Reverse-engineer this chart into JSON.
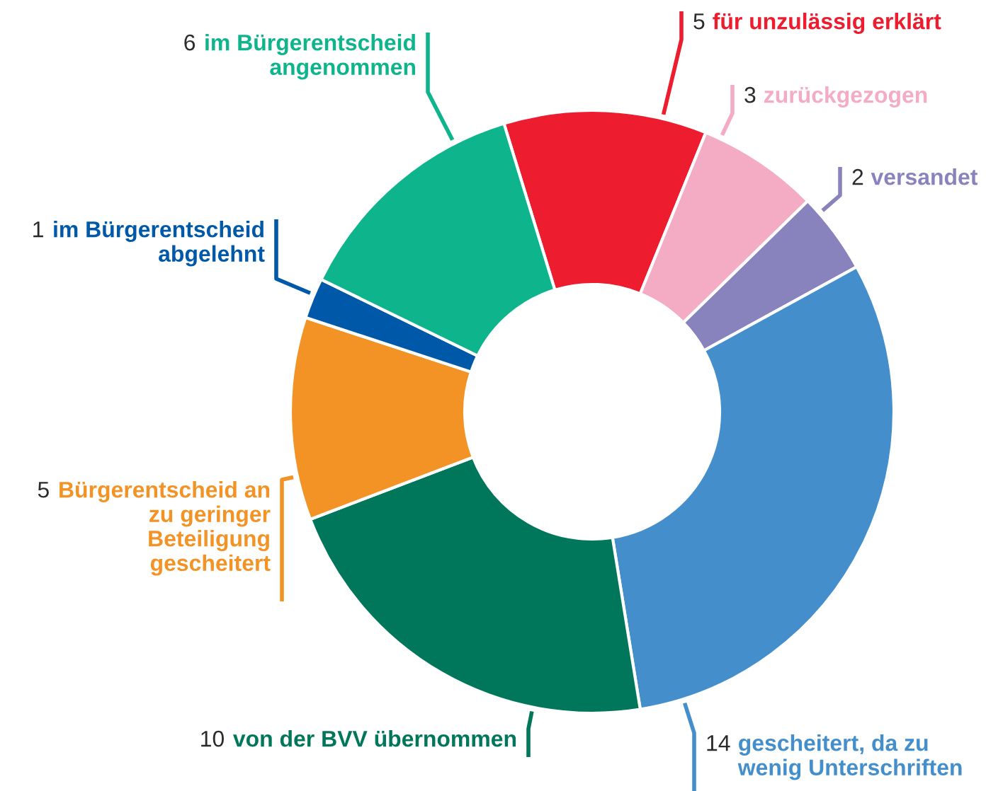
{
  "chart_data": {
    "type": "donut",
    "categories": [
      "für unzulässig erklärt",
      "zurückgezogen",
      "versandet",
      "gescheitert, da zu\nwenig Unterschriften",
      "von der BVV übernommen",
      "Bürgerentscheid an\nzu geringer\nBeteiligung\ngescheitert",
      "im Bürgerentscheid\nabgelehnt",
      "im Bürgerentscheid\nangenommen"
    ],
    "values": [
      5,
      3,
      2,
      14,
      10,
      5,
      1,
      6
    ],
    "colors": [
      "#ed1c2e",
      "#f4acc4",
      "#8882bd",
      "#438ecb",
      "#00775a",
      "#f39325",
      "#0059a8",
      "#0db48c"
    ],
    "data_labels": true
  }
}
